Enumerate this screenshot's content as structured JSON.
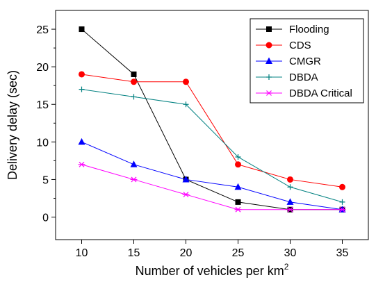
{
  "chart_data": {
    "type": "line",
    "title": "",
    "xlabel": "Number of vehicles per km",
    "xlabel_superscript": "2",
    "ylabel": "Delivery delay (sec)",
    "x": [
      10,
      15,
      20,
      25,
      30,
      35
    ],
    "xlim": [
      7.5,
      37.5
    ],
    "ylim": [
      -3,
      27.5
    ],
    "xticks": [
      10,
      15,
      20,
      25,
      30,
      35
    ],
    "yticks": [
      0,
      5,
      10,
      15,
      20,
      25
    ],
    "grid": false,
    "legend_position": "top-right",
    "series": [
      {
        "name": "Flooding",
        "color": "#000000",
        "marker": "square",
        "values": [
          25,
          19,
          5,
          2,
          1,
          1
        ]
      },
      {
        "name": "CDS",
        "color": "#ff0000",
        "marker": "circle",
        "values": [
          19,
          18,
          18,
          7,
          5,
          4
        ]
      },
      {
        "name": "CMGR",
        "color": "#0000ff",
        "marker": "triangle",
        "values": [
          10,
          7,
          5,
          4,
          2,
          1
        ]
      },
      {
        "name": "DBDA",
        "color": "#008080",
        "marker": "plus",
        "values": [
          17,
          16,
          15,
          8,
          4,
          2
        ]
      },
      {
        "name": "DBDA Critical",
        "color": "#ff00ff",
        "marker": "asterisk",
        "values": [
          7,
          5,
          3,
          1,
          1,
          1
        ]
      }
    ]
  }
}
